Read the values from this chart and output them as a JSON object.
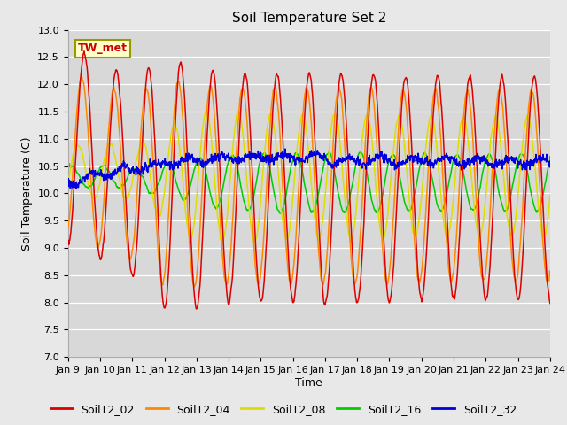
{
  "title": "Soil Temperature Set 2",
  "xlabel": "Time",
  "ylabel": "Soil Temperature (C)",
  "ylim": [
    7.0,
    13.0
  ],
  "yticks": [
    7.0,
    7.5,
    8.0,
    8.5,
    9.0,
    9.5,
    10.0,
    10.5,
    11.0,
    11.5,
    12.0,
    12.5,
    13.0
  ],
  "xtick_labels": [
    "Jan 9",
    "Jan 10",
    "Jan 11",
    "Jan 12",
    "Jan 13",
    "Jan 14",
    "Jan 15",
    "Jan 16",
    "Jan 17",
    "Jan 18",
    "Jan 19",
    "Jan 20",
    "Jan 21",
    "Jan 22",
    "Jan 23",
    "Jan 24"
  ],
  "series_colors": {
    "SoilT2_02": "#dd0000",
    "SoilT2_04": "#ff8800",
    "SoilT2_08": "#dddd00",
    "SoilT2_16": "#00cc00",
    "SoilT2_32": "#0000dd"
  },
  "annotation_text": "TW_met",
  "annotation_color": "#cc0000",
  "annotation_bg": "#ffffcc",
  "annotation_edge": "#999900",
  "bg_color": "#e8e8e8",
  "plot_bg_color": "#d8d8d8",
  "title_fontsize": 11,
  "axis_label_fontsize": 9,
  "tick_fontsize": 8,
  "legend_fontsize": 9,
  "linewidth": 1.1
}
